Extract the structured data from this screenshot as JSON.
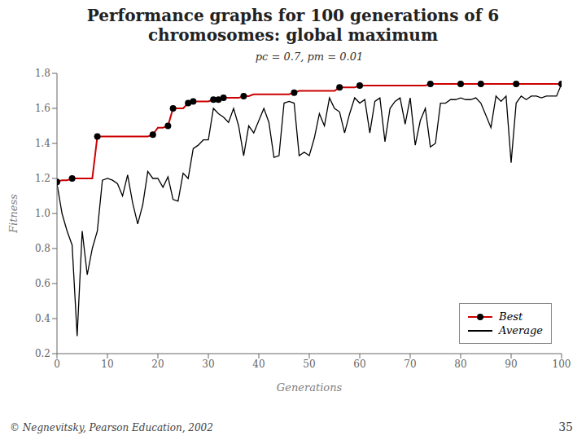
{
  "chart_data": {
    "type": "line",
    "title": "Performance graphs for 100 generations of 6\nchromosomes: global maximum",
    "subtitle": "pc = 0.7, pm = 0.01",
    "xlabel": "Generations",
    "ylabel": "Fitness",
    "annotations": [
      "© Negnevitsky, Pearson Education, 2002",
      "35"
    ],
    "x": [
      0,
      1,
      2,
      3,
      4,
      5,
      6,
      7,
      8,
      9,
      10,
      11,
      12,
      13,
      14,
      15,
      16,
      17,
      18,
      19,
      20,
      21,
      22,
      23,
      24,
      25,
      26,
      27,
      28,
      29,
      30,
      31,
      32,
      33,
      34,
      35,
      36,
      37,
      38,
      39,
      40,
      41,
      42,
      43,
      44,
      45,
      46,
      47,
      48,
      49,
      50,
      51,
      52,
      53,
      54,
      55,
      56,
      57,
      58,
      59,
      60,
      61,
      62,
      63,
      64,
      65,
      66,
      67,
      68,
      69,
      70,
      71,
      72,
      73,
      74,
      75,
      76,
      77,
      78,
      79,
      80,
      81,
      82,
      83,
      84,
      85,
      86,
      87,
      88,
      89,
      90,
      91,
      92,
      93,
      94,
      95,
      96,
      97,
      98,
      99,
      100
    ],
    "series": [
      {
        "name": "Best",
        "color": "#cc0000",
        "marker": "o",
        "marker_x": [
          0,
          3,
          8,
          19,
          22,
          23,
          26,
          27,
          31,
          32,
          33,
          37,
          47,
          56,
          60,
          74,
          80,
          84,
          91,
          100
        ],
        "values": [
          1.18,
          1.19,
          1.19,
          1.2,
          1.2,
          1.2,
          1.2,
          1.2,
          1.44,
          1.44,
          1.44,
          1.44,
          1.44,
          1.44,
          1.44,
          1.44,
          1.44,
          1.44,
          1.44,
          1.45,
          1.49,
          1.49,
          1.5,
          1.6,
          1.6,
          1.6,
          1.63,
          1.64,
          1.64,
          1.64,
          1.64,
          1.65,
          1.65,
          1.66,
          1.66,
          1.66,
          1.66,
          1.67,
          1.67,
          1.68,
          1.68,
          1.68,
          1.68,
          1.68,
          1.68,
          1.68,
          1.68,
          1.69,
          1.7,
          1.7,
          1.7,
          1.7,
          1.7,
          1.7,
          1.7,
          1.7,
          1.72,
          1.72,
          1.72,
          1.72,
          1.73,
          1.73,
          1.73,
          1.73,
          1.73,
          1.73,
          1.73,
          1.73,
          1.73,
          1.73,
          1.73,
          1.73,
          1.73,
          1.73,
          1.74,
          1.74,
          1.74,
          1.74,
          1.74,
          1.74,
          1.74,
          1.74,
          1.74,
          1.74,
          1.74,
          1.74,
          1.74,
          1.74,
          1.74,
          1.74,
          1.74,
          1.74,
          1.74,
          1.74,
          1.74,
          1.74,
          1.74,
          1.74,
          1.74,
          1.74,
          1.74
        ]
      },
      {
        "name": "Average",
        "color": "#000000",
        "values": [
          1.17,
          1.0,
          0.9,
          0.82,
          0.3,
          0.9,
          0.65,
          0.8,
          0.9,
          1.19,
          1.2,
          1.19,
          1.17,
          1.1,
          1.22,
          1.06,
          0.94,
          1.05,
          1.24,
          1.2,
          1.2,
          1.15,
          1.21,
          1.08,
          1.07,
          1.23,
          1.2,
          1.37,
          1.39,
          1.42,
          1.42,
          1.6,
          1.57,
          1.55,
          1.52,
          1.6,
          1.5,
          1.33,
          1.5,
          1.46,
          1.53,
          1.6,
          1.52,
          1.32,
          1.33,
          1.63,
          1.64,
          1.63,
          1.33,
          1.35,
          1.33,
          1.43,
          1.57,
          1.5,
          1.66,
          1.6,
          1.58,
          1.46,
          1.57,
          1.66,
          1.63,
          1.65,
          1.46,
          1.64,
          1.66,
          1.41,
          1.6,
          1.64,
          1.66,
          1.51,
          1.66,
          1.39,
          1.53,
          1.6,
          1.38,
          1.4,
          1.63,
          1.63,
          1.65,
          1.65,
          1.66,
          1.65,
          1.65,
          1.66,
          1.63,
          1.56,
          1.49,
          1.67,
          1.64,
          1.67,
          1.29,
          1.63,
          1.67,
          1.65,
          1.67,
          1.67,
          1.66,
          1.67,
          1.67,
          1.67,
          1.74
        ]
      }
    ],
    "xlim": [
      0,
      100
    ],
    "ylim": [
      0.2,
      1.8
    ],
    "xticks": [
      0,
      10,
      20,
      30,
      40,
      50,
      60,
      70,
      80,
      90,
      100
    ],
    "yticks": [
      0.2,
      0.4,
      0.6,
      0.8,
      {
        "value": 1.0,
        "label": "1.0"
      },
      1.2,
      1.4,
      1.6,
      1.8
    ],
    "grid": false,
    "legend": "lower right"
  }
}
